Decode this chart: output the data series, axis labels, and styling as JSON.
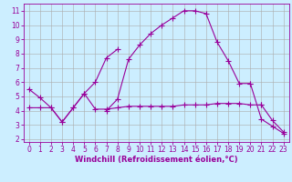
{
  "xlabel": "Windchill (Refroidissement éolien,°C)",
  "background_color": "#cceeff",
  "grid_color": "#aaaaaa",
  "line_color": "#990099",
  "x_values": [
    0,
    1,
    2,
    3,
    4,
    5,
    6,
    7,
    8,
    9,
    10,
    11,
    12,
    13,
    14,
    15,
    16,
    17,
    18,
    19,
    20,
    21,
    22,
    23
  ],
  "series1": [
    5.5,
    4.9,
    4.2,
    3.2,
    4.2,
    5.2,
    4.1,
    4.1,
    4.2,
    4.3,
    4.3,
    4.3,
    4.3,
    4.3,
    4.4,
    4.4,
    4.4,
    4.5,
    4.5,
    4.5,
    4.4,
    4.4,
    null,
    null
  ],
  "series2": [
    null,
    null,
    null,
    null,
    null,
    null,
    null,
    null,
    null,
    null,
    null,
    null,
    null,
    null,
    null,
    null,
    null,
    null,
    null,
    null,
    null,
    4.4,
    3.3,
    2.5
  ],
  "series3": [
    4.2,
    4.2,
    4.2,
    3.2,
    4.2,
    5.2,
    6.0,
    7.7,
    8.3,
    null,
    null,
    null,
    null,
    null,
    null,
    null,
    null,
    null,
    null,
    null,
    null,
    null,
    null,
    null
  ],
  "series4": [
    null,
    null,
    null,
    null,
    null,
    null,
    null,
    4.0,
    4.8,
    7.6,
    8.6,
    9.4,
    10.0,
    10.5,
    11.0,
    11.0,
    10.8,
    8.8,
    7.5,
    5.9,
    5.9,
    null,
    null,
    null
  ],
  "series5": [
    null,
    null,
    null,
    null,
    null,
    null,
    null,
    null,
    null,
    null,
    null,
    null,
    null,
    null,
    null,
    null,
    null,
    null,
    null,
    null,
    5.9,
    3.4,
    2.9,
    2.4
  ],
  "ylim": [
    1.8,
    11.5
  ],
  "xlim": [
    -0.5,
    23.5
  ],
  "yticks": [
    2,
    3,
    4,
    5,
    6,
    7,
    8,
    9,
    10,
    11
  ],
  "xticks": [
    0,
    1,
    2,
    3,
    4,
    5,
    6,
    7,
    8,
    9,
    10,
    11,
    12,
    13,
    14,
    15,
    16,
    17,
    18,
    19,
    20,
    21,
    22,
    23
  ],
  "tick_fontsize": 5.5,
  "xlabel_fontsize": 6.0,
  "marker_size": 2.0,
  "line_width": 0.8
}
